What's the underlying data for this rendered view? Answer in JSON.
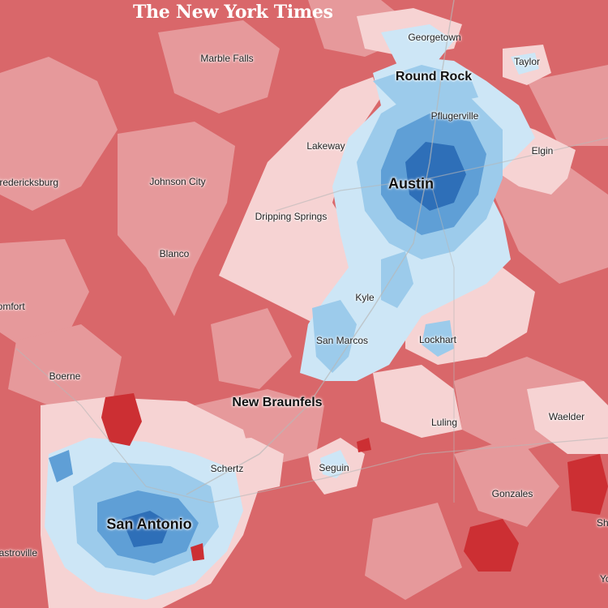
{
  "publisher": {
    "name": "The New York Times"
  },
  "palette": {
    "strong_red": "#cc2f33",
    "red": "#d9676a",
    "light_red": "#e6999b",
    "pale_red": "#f6d3d3",
    "very_light_blue": "#cde6f6",
    "light_blue": "#9ccbeb",
    "blue": "#5f9fd6",
    "dark_blue": "#2e6fb8",
    "road": "#b8b8b8"
  },
  "map": {
    "labels": {
      "georgetown": "Georgetown",
      "marble_falls": "Marble Falls",
      "taylor": "Taylor",
      "round_rock": "Round Rock",
      "pflugerville": "Pflugerville",
      "lakeway": "Lakeway",
      "elgin": "Elgin",
      "fredericksburg": "Fredericksburg",
      "johnson_city": "Johnson City",
      "austin": "Austin",
      "dripping_springs": "Dripping Springs",
      "blanco": "Blanco",
      "comfort": "Comfort",
      "kyle": "Kyle",
      "san_marcos": "San Marcos",
      "lockhart": "Lockhart",
      "boerne": "Boerne",
      "new_braunfels": "New Braunfels",
      "luling": "Luling",
      "waelder": "Waelder",
      "schertz": "Schertz",
      "seguin": "Seguin",
      "gonzales": "Gonzales",
      "san_antonio": "San Antonio",
      "castroville": "Castroville",
      "shiner": "Shiner",
      "yoakum": "Yoakum"
    }
  }
}
